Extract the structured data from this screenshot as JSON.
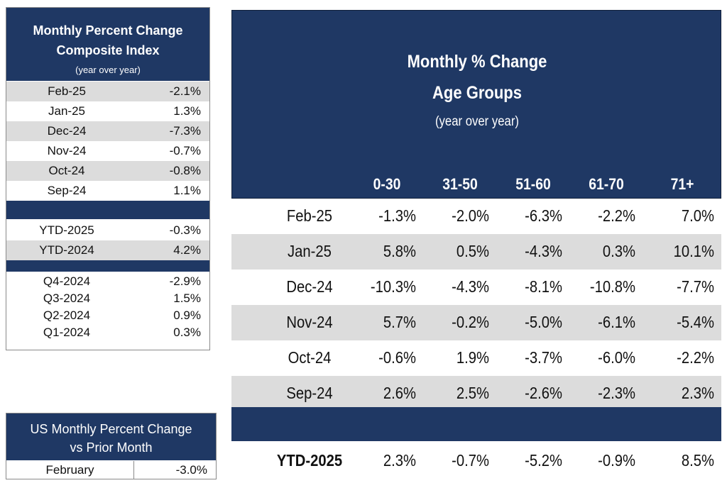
{
  "composite": {
    "title_line1": "Monthly Percent Change",
    "title_line2": "Composite Index",
    "subtitle": "(year over year)",
    "months": [
      {
        "label": "Feb-25",
        "value": "-2.1%"
      },
      {
        "label": "Jan-25",
        "value": "1.3%"
      },
      {
        "label": "Dec-24",
        "value": "-7.3%"
      },
      {
        "label": "Nov-24",
        "value": "-0.7%"
      },
      {
        "label": "Oct-24",
        "value": "-0.8%"
      },
      {
        "label": "Sep-24",
        "value": "1.1%"
      }
    ],
    "ytd": [
      {
        "label": "YTD-2025",
        "value": "-0.3%"
      },
      {
        "label": "YTD-2024",
        "value": "4.2%"
      }
    ],
    "quarters": [
      {
        "label": "Q4-2024",
        "value": "-2.9%"
      },
      {
        "label": "Q3-2024",
        "value": "1.5%"
      },
      {
        "label": "Q2-2024",
        "value": "0.9%"
      },
      {
        "label": "Q1-2024",
        "value": "0.3%"
      }
    ]
  },
  "age_groups": {
    "title_line1": "Monthly % Change",
    "title_line2": "Age Groups",
    "subtitle": "(year over year)",
    "columns": [
      "0-30",
      "31-50",
      "51-60",
      "61-70",
      "71+"
    ],
    "rows": [
      {
        "label": "Feb-25",
        "values": [
          "-1.3%",
          "-2.0%",
          "-6.3%",
          "-2.2%",
          "7.0%"
        ]
      },
      {
        "label": "Jan-25",
        "values": [
          "5.8%",
          "0.5%",
          "-4.3%",
          "0.3%",
          "10.1%"
        ]
      },
      {
        "label": "Dec-24",
        "values": [
          "-10.3%",
          "-4.3%",
          "-8.1%",
          "-10.8%",
          "-7.7%"
        ]
      },
      {
        "label": "Nov-24",
        "values": [
          "5.7%",
          "-0.2%",
          "-5.0%",
          "-6.1%",
          "-5.4%"
        ]
      },
      {
        "label": "Oct-24",
        "values": [
          "-0.6%",
          "1.9%",
          "-3.7%",
          "-6.0%",
          "-2.2%"
        ]
      },
      {
        "label": "Sep-24",
        "values": [
          "2.6%",
          "2.5%",
          "-2.6%",
          "-2.3%",
          "2.3%"
        ]
      }
    ],
    "ytd": {
      "label": "YTD-2025",
      "values": [
        "2.3%",
        "-0.7%",
        "-5.2%",
        "-0.9%",
        "8.5%"
      ]
    }
  },
  "us_change": {
    "title_line1": "US Monthly Percent Change",
    "title_line2": "vs Prior Month",
    "row": {
      "label": "February",
      "value": "-3.0%"
    }
  },
  "colors": {
    "header_navy": "#1f3864",
    "alt_row_gray": "#dcdcdc"
  }
}
